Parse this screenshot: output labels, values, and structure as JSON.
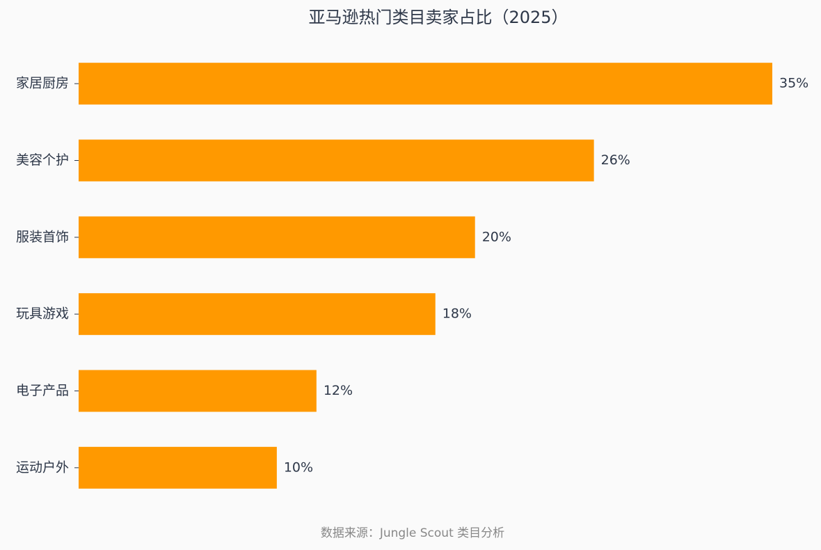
{
  "chart_data": {
    "type": "bar",
    "orientation": "horizontal",
    "title": "亚马逊热门类目卖家占比（2025）",
    "categories": [
      "家居厨房",
      "美容个护",
      "服装首饰",
      "玩具游戏",
      "电子产品",
      "运动户外"
    ],
    "values": [
      35,
      26,
      20,
      18,
      12,
      10
    ],
    "value_labels": [
      "35%",
      "26%",
      "20%",
      "18%",
      "12%",
      "10%"
    ],
    "color": "#ff9900",
    "source": "数据来源：Jungle Scout 类目分析"
  }
}
